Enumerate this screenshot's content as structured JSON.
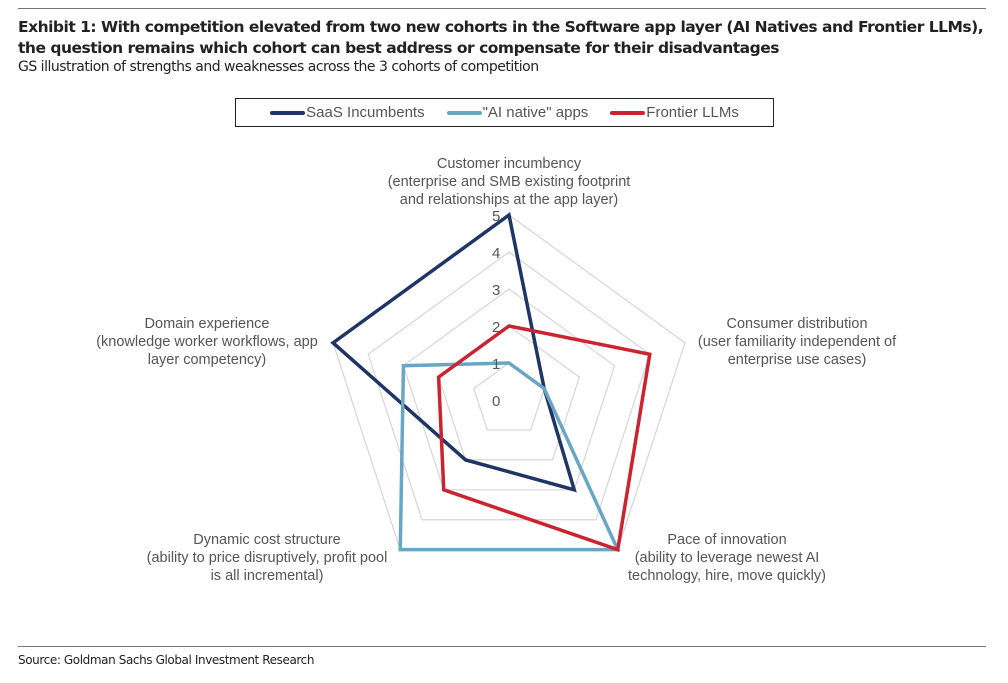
{
  "header": {
    "title": "Exhibit 1: With competition elevated from two new cohorts in the Software app layer (AI Natives and Frontier LLMs), the question remains which cohort can best address or compensate for their disadvantages",
    "subtitle": "GS illustration of strengths and weaknesses across the 3 cohorts of competition"
  },
  "legend": {
    "items": [
      {
        "label": "SaaS Incumbents",
        "color": "#1f3566"
      },
      {
        "label": "\"AI native\" apps",
        "color": "#6aa6c4"
      },
      {
        "label": "Frontier LLMs",
        "color": "#c9242f"
      }
    ]
  },
  "footer": {
    "source": "Source: Goldman Sachs Global Investment Research"
  },
  "chart_data": {
    "type": "radar",
    "title": "GS illustration of strengths and weaknesses across the 3 cohorts of competition",
    "categories": [
      "Customer incumbency (enterprise and SMB existing footprint and relationships at the app layer)",
      "Consumer distribution (user familiarity independent of enterprise use cases)",
      "Pace of innovation (ability to leverage newest AI technology, hire, move quickly)",
      "Dynamic cost structure (ability to price disruptively, profit pool is all incremental)",
      "Domain experience (knowledge worker workflows, app layer competency)"
    ],
    "axis_labels": [
      {
        "title": "Customer incumbency",
        "lines": [
          "(enterprise and SMB existing footprint",
          "and relationships at the app layer)"
        ]
      },
      {
        "title": "Consumer distribution",
        "lines": [
          "(user familiarity independent of",
          "enterprise use cases)"
        ]
      },
      {
        "title": "Pace of innovation",
        "lines": [
          "(ability to leverage newest AI",
          "technology, hire, move quickly)"
        ]
      },
      {
        "title": "Dynamic cost structure",
        "lines": [
          "(ability to price disruptively, profit pool",
          "is all incremental)"
        ]
      },
      {
        "title": "Domain experience",
        "lines": [
          "(knowledge worker workflows, app",
          "layer competency)"
        ]
      }
    ],
    "series": [
      {
        "name": "SaaS Incumbents",
        "color": "#1f3566",
        "values": [
          5,
          1,
          3,
          2,
          5
        ]
      },
      {
        "name": "\"AI native\" apps",
        "color": "#6aa6c4",
        "values": [
          1,
          1,
          5,
          5,
          3
        ]
      },
      {
        "name": "Frontier LLMs",
        "color": "#c9242f",
        "values": [
          2,
          4,
          5,
          3,
          2
        ]
      }
    ],
    "rlim": [
      0,
      5
    ],
    "ticks": [
      "0",
      "1",
      "2",
      "3",
      "4",
      "5"
    ],
    "grid": true,
    "legend_position": "top"
  }
}
